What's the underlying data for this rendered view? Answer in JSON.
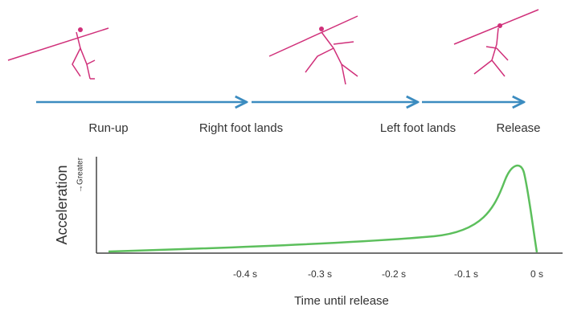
{
  "phases": [
    "Run-up",
    "Right foot lands",
    "Left foot lands",
    "Release"
  ],
  "chart": {
    "y_label": "Acceleration",
    "y_note": "→Greater",
    "x_label": "Time until release",
    "x_ticks": [
      "-0.4 s",
      "-0.3 s",
      "-0.2 s",
      "-0.1 s",
      "0 s"
    ]
  }
}
